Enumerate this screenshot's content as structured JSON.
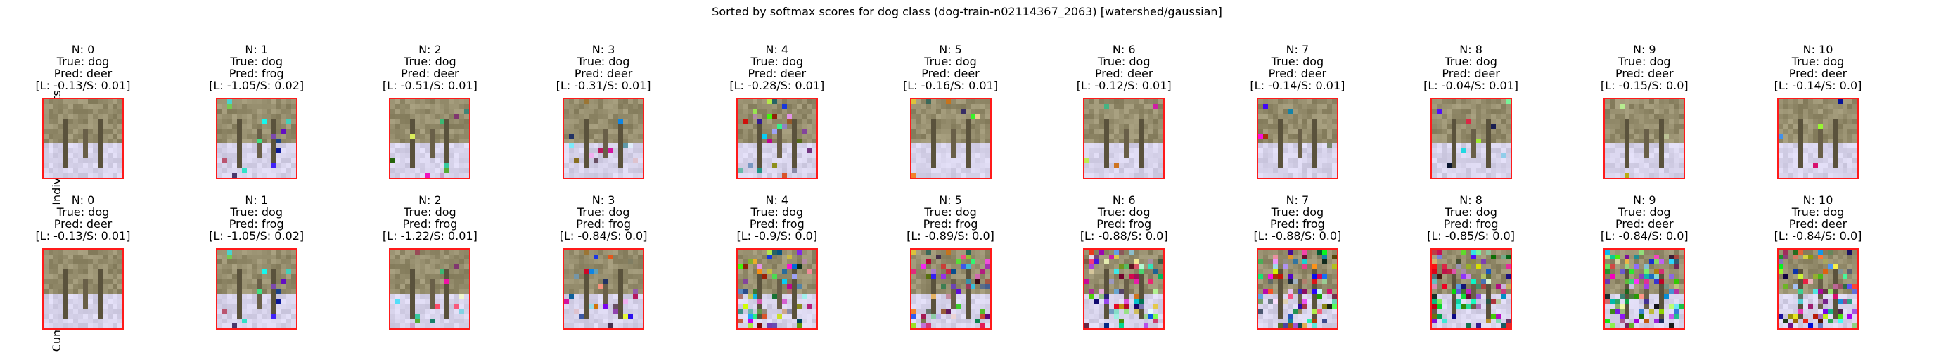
{
  "title": "Sorted by softmax scores for dog class (dog-train-n02114367_2063) [watershed/gaussian]",
  "row_labels": [
    "Individual Segments",
    "Cumulative Image"
  ],
  "rows": [
    {
      "name": "individual-segments",
      "cells": [
        {
          "n": "N: 0",
          "true": "True: dog",
          "pred": "Pred: deer",
          "score": "[L: -0.13/S: 0.01]"
        },
        {
          "n": "N: 1",
          "true": "True: dog",
          "pred": "Pred: frog",
          "score": "[L: -1.05/S: 0.02]"
        },
        {
          "n": "N: 2",
          "true": "True: dog",
          "pred": "Pred: deer",
          "score": "[L: -0.51/S: 0.01]"
        },
        {
          "n": "N: 3",
          "true": "True: dog",
          "pred": "Pred: deer",
          "score": "[L: -0.31/S: 0.01]"
        },
        {
          "n": "N: 4",
          "true": "True: dog",
          "pred": "Pred: deer",
          "score": "[L: -0.28/S: 0.01]"
        },
        {
          "n": "N: 5",
          "true": "True: dog",
          "pred": "Pred: deer",
          "score": "[L: -0.16/S: 0.01]"
        },
        {
          "n": "N: 6",
          "true": "True: dog",
          "pred": "Pred: deer",
          "score": "[L: -0.12/S: 0.01]"
        },
        {
          "n": "N: 7",
          "true": "True: dog",
          "pred": "Pred: deer",
          "score": "[L: -0.14/S: 0.01]"
        },
        {
          "n": "N: 8",
          "true": "True: dog",
          "pred": "Pred: deer",
          "score": "[L: -0.04/S: 0.01]"
        },
        {
          "n": "N: 9",
          "true": "True: dog",
          "pred": "Pred: deer",
          "score": "[L: -0.15/S: 0.0]"
        },
        {
          "n": "N: 10",
          "true": "True: dog",
          "pred": "Pred: deer",
          "score": "[L: -0.14/S: 0.0]"
        }
      ]
    },
    {
      "name": "cumulative-image",
      "cells": [
        {
          "n": "N: 0",
          "true": "True: dog",
          "pred": "Pred: deer",
          "score": "[L: -0.13/S: 0.01]"
        },
        {
          "n": "N: 1",
          "true": "True: dog",
          "pred": "Pred: frog",
          "score": "[L: -1.05/S: 0.02]"
        },
        {
          "n": "N: 2",
          "true": "True: dog",
          "pred": "Pred: frog",
          "score": "[L: -1.22/S: 0.01]"
        },
        {
          "n": "N: 3",
          "true": "True: dog",
          "pred": "Pred: frog",
          "score": "[L: -0.84/S: 0.0]"
        },
        {
          "n": "N: 4",
          "true": "True: dog",
          "pred": "Pred: frog",
          "score": "[L: -0.9/S: 0.0]"
        },
        {
          "n": "N: 5",
          "true": "True: dog",
          "pred": "Pred: frog",
          "score": "[L: -0.89/S: 0.0]"
        },
        {
          "n": "N: 6",
          "true": "True: dog",
          "pred": "Pred: frog",
          "score": "[L: -0.88/S: 0.0]"
        },
        {
          "n": "N: 7",
          "true": "True: dog",
          "pred": "Pred: frog",
          "score": "[L: -0.88/S: 0.0]"
        },
        {
          "n": "N: 8",
          "true": "True: dog",
          "pred": "Pred: frog",
          "score": "[L: -0.85/S: 0.0]"
        },
        {
          "n": "N: 9",
          "true": "True: dog",
          "pred": "Pred: deer",
          "score": "[L: -0.84/S: 0.0]"
        },
        {
          "n": "N: 10",
          "true": "True: dog",
          "pred": "Pred: deer",
          "score": "[L: -0.84/S: 0.0]"
        }
      ]
    }
  ],
  "colors": {
    "frame": "#ff1a1a",
    "background": "#ffffff",
    "scene_upper": "#8a7f5e",
    "scene_lower": "#d9d4ec"
  }
}
